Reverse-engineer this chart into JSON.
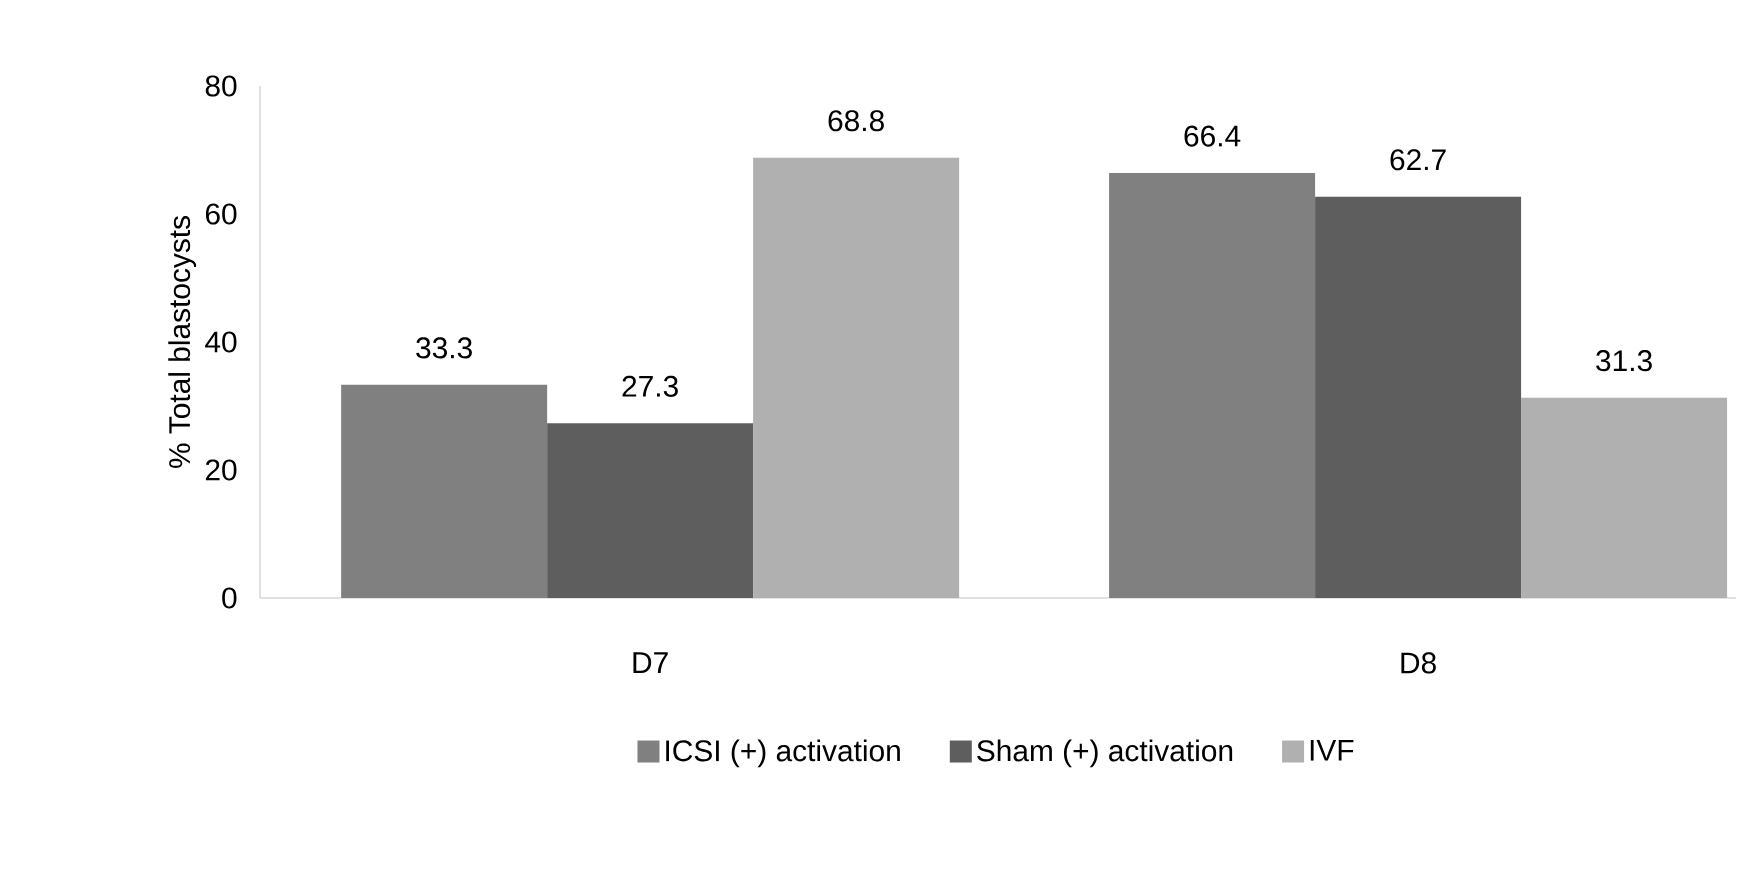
{
  "chart_data": {
    "type": "bar",
    "ylabel": "% Total blastocysts",
    "categories": [
      "D7",
      "D8"
    ],
    "series": [
      {
        "name": "ICSI (+) activation",
        "color": "#808080",
        "values": [
          33.3,
          66.4
        ]
      },
      {
        "name": "Sham (+) activation",
        "color": "#5e5e5e",
        "values": [
          27.3,
          62.7
        ]
      },
      {
        "name": "IVF",
        "color": "#b0b0b0",
        "values": [
          68.8,
          31.3
        ]
      }
    ],
    "ylim": [
      0,
      80
    ],
    "yticks": [
      0,
      20,
      40,
      60,
      80
    ],
    "data_labels": true,
    "legend": "bottom",
    "grid": false
  }
}
